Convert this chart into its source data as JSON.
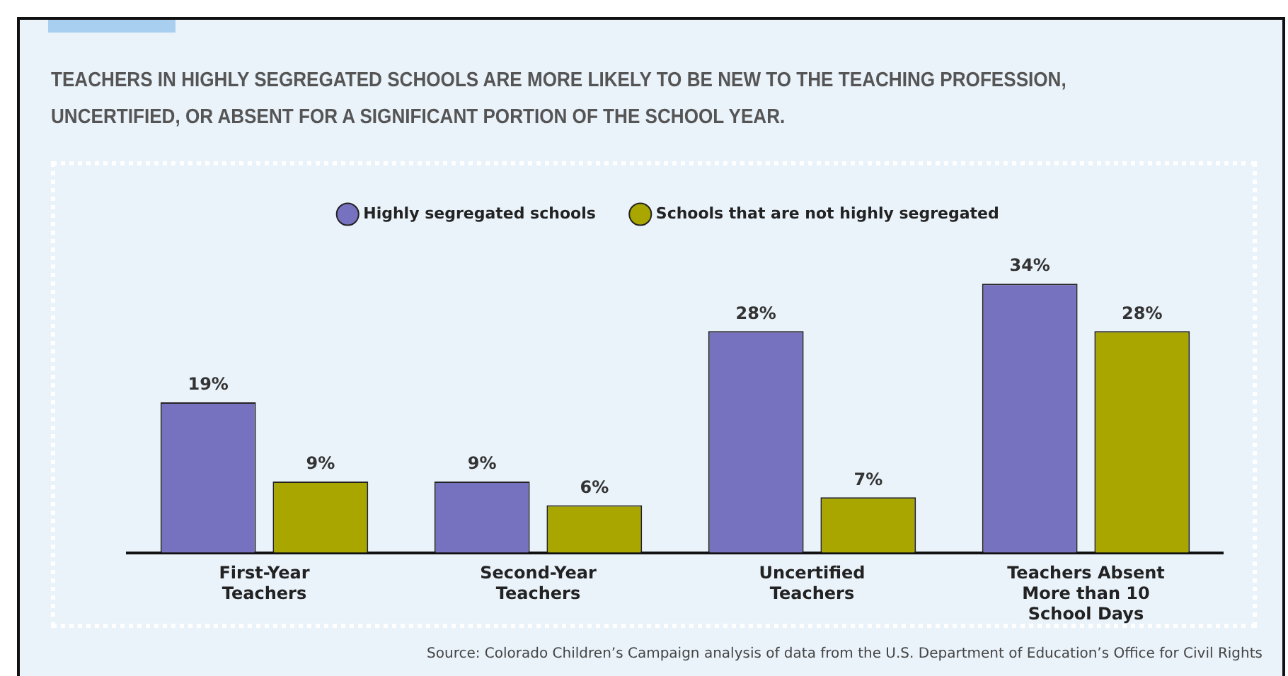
{
  "chart_data": {
    "type": "bar",
    "title": "TEACHERS IN HIGHLY SEGREGATED SCHOOLS ARE MORE LIKELY TO BE NEW TO THE TEACHING PROFESSION, UNCERTIFIED, OR ABSENT FOR A SIGNIFICANT PORTION OF THE SCHOOL YEAR.",
    "categories": [
      "First-Year Teachers",
      "Second-Year Teachers",
      "Uncertified Teachers",
      "Teachers Absent More than 10 School Days"
    ],
    "series": [
      {
        "name": "Highly segregated schools",
        "color": "#7672c0",
        "values": [
          19,
          9,
          28,
          34
        ],
        "value_labels": [
          "19%",
          "9%",
          "28%",
          "34%"
        ]
      },
      {
        "name": "Schools that are not highly segregated",
        "color": "#a9a600",
        "values": [
          9,
          6,
          7,
          28
        ],
        "value_labels": [
          "9%",
          "6%",
          "7%",
          "28%"
        ]
      }
    ],
    "tick_labels": "x",
    "grid": false,
    "legend": "top",
    "annotations": [
      "Source:  Colorado Children’s Campaign analysis of data from the U.S. Department of Education’s Office for Civil Rights"
    ]
  }
}
